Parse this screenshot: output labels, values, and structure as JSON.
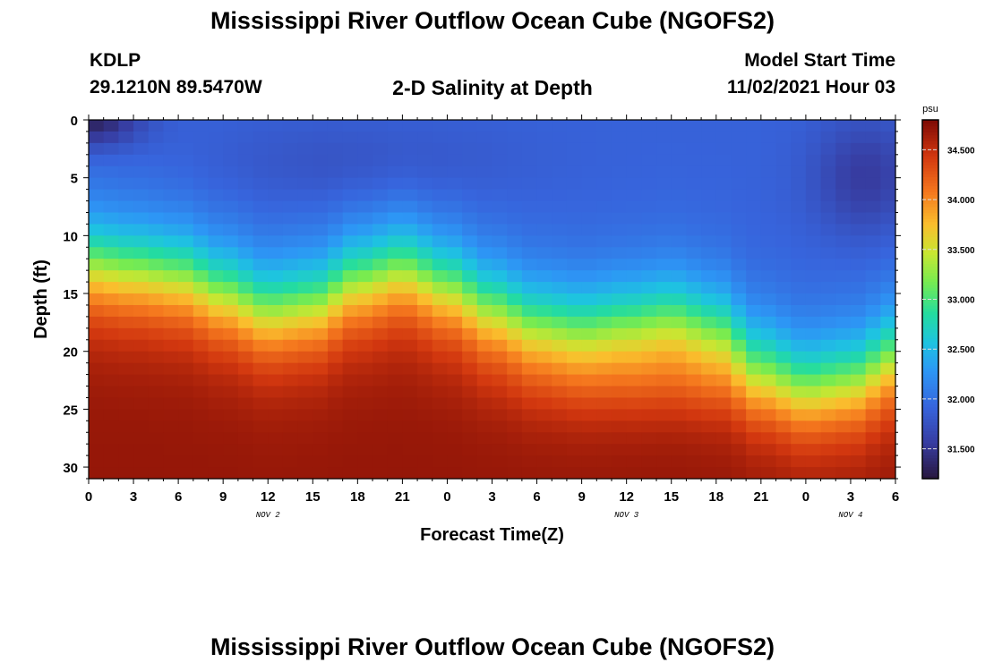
{
  "page": {
    "title": "Mississippi River Outflow Ocean Cube (NGOFS2)",
    "title_repeat": "Mississippi River Outflow Ocean Cube (NGOFS2)",
    "station": "KDLP",
    "location": "29.1210N  89.5470W",
    "subtitle": "2-D Salinity at Depth",
    "model_start_label": "Model Start Time",
    "model_start_value": "11/02/2021 Hour 03"
  },
  "chart_data": {
    "type": "heatmap",
    "title": "2-D Salinity at Depth",
    "xlabel": "Forecast Time(Z)",
    "ylabel": "Depth (ft)",
    "x_range_hours": [
      0,
      54
    ],
    "y_range_ft": [
      0,
      31
    ],
    "y_inverted": true,
    "x_ticks": [
      {
        "hour": 0,
        "label": "0"
      },
      {
        "hour": 3,
        "label": "3"
      },
      {
        "hour": 6,
        "label": "6"
      },
      {
        "hour": 9,
        "label": "9"
      },
      {
        "hour": 12,
        "label": "12"
      },
      {
        "hour": 15,
        "label": "15"
      },
      {
        "hour": 18,
        "label": "18"
      },
      {
        "hour": 21,
        "label": "21"
      },
      {
        "hour": 24,
        "label": "0"
      },
      {
        "hour": 27,
        "label": "3"
      },
      {
        "hour": 30,
        "label": "6"
      },
      {
        "hour": 33,
        "label": "9"
      },
      {
        "hour": 36,
        "label": "12"
      },
      {
        "hour": 39,
        "label": "15"
      },
      {
        "hour": 42,
        "label": "18"
      },
      {
        "hour": 45,
        "label": "21"
      },
      {
        "hour": 48,
        "label": "0"
      },
      {
        "hour": 51,
        "label": "3"
      },
      {
        "hour": 54,
        "label": "6"
      }
    ],
    "day_labels": [
      {
        "hour": 12,
        "label": "NOV 2"
      },
      {
        "hour": 36,
        "label": "NOV 3"
      },
      {
        "hour": 51,
        "label": "NOV 4"
      }
    ],
    "y_ticks": [
      0,
      5,
      10,
      15,
      20,
      25,
      30
    ],
    "colorbar": {
      "unit": "psu",
      "range": [
        31.2,
        34.8
      ],
      "ticks": [
        {
          "value": 31.5,
          "label": "31.500"
        },
        {
          "value": 32.0,
          "label": "32.000"
        },
        {
          "value": 32.5,
          "label": "32.500"
        },
        {
          "value": 33.0,
          "label": "33.000"
        },
        {
          "value": 33.5,
          "label": "33.500"
        },
        {
          "value": 34.0,
          "label": "34.000"
        },
        {
          "value": 34.5,
          "label": "34.500"
        }
      ]
    },
    "halocline_depth_ft": [
      {
        "hour": 0,
        "depth": 11.0
      },
      {
        "hour": 3,
        "depth": 11.5
      },
      {
        "hour": 6,
        "depth": 12.0
      },
      {
        "hour": 9,
        "depth": 13.5
      },
      {
        "hour": 12,
        "depth": 15.0
      },
      {
        "hour": 15,
        "depth": 14.5
      },
      {
        "hour": 18,
        "depth": 12.5
      },
      {
        "hour": 21,
        "depth": 11.5
      },
      {
        "hour": 24,
        "depth": 13.0
      },
      {
        "hour": 27,
        "depth": 15.0
      },
      {
        "hour": 30,
        "depth": 16.5
      },
      {
        "hour": 33,
        "depth": 17.0
      },
      {
        "hour": 36,
        "depth": 16.5
      },
      {
        "hour": 39,
        "depth": 16.0
      },
      {
        "hour": 42,
        "depth": 17.0
      },
      {
        "hour": 45,
        "depth": 20.0
      },
      {
        "hour": 48,
        "depth": 21.5
      },
      {
        "hour": 51,
        "depth": 21.0
      },
      {
        "hour": 54,
        "depth": 19.0
      }
    ],
    "surface_fresh_lens": {
      "hour_max": 5,
      "depth_max_ft": 3,
      "min_salinity": 31.3
    },
    "deep_salinity": 34.7,
    "upper_salinity": 31.9
  }
}
